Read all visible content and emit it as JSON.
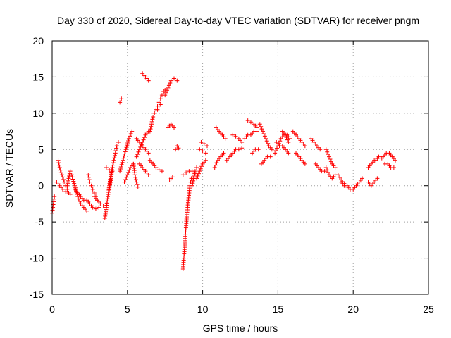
{
  "chart_data": {
    "type": "scatter",
    "title": "Day 330 of 2020, Sidereal Day-to-day VTEC variation (SDTVAR) for receiver pngm",
    "xlabel": "GPS time / hours",
    "ylabel": "SDTVAR / TECUs",
    "xlim": [
      0,
      25
    ],
    "ylim": [
      -15,
      20
    ],
    "xticks": [
      0,
      5,
      10,
      15,
      20,
      25
    ],
    "yticks": [
      -15,
      -10,
      -5,
      0,
      5,
      10,
      15,
      20
    ],
    "xtick_labels": [
      "0",
      "5",
      "10",
      "15",
      "20",
      "25"
    ],
    "ytick_labels": [
      "-15",
      "-10",
      "-5",
      "0",
      "5",
      "10",
      "15",
      "20"
    ],
    "grid": true,
    "marker": "+",
    "marker_color": "#ff0000",
    "segments": [
      {
        "x": [
          0.0,
          0.05,
          0.1,
          0.15
        ],
        "y": [
          -3.8,
          -3.0,
          -2.2,
          -1.5
        ]
      },
      {
        "x": [
          0.4,
          0.5,
          0.6,
          0.7,
          0.8,
          0.9,
          1.0,
          1.1,
          1.2
        ],
        "y": [
          3.5,
          2.5,
          1.8,
          1.2,
          0.5,
          0.0,
          -0.5,
          -1.0,
          -1.2
        ]
      },
      {
        "x": [
          0.3,
          0.5,
          0.7,
          0.9,
          1.1
        ],
        "y": [
          0.5,
          0.0,
          -0.5,
          -0.8,
          -1.0
        ]
      },
      {
        "x": [
          1.0,
          1.1,
          1.2
        ],
        "y": [
          0.0,
          1.0,
          2.0
        ]
      },
      {
        "x": [
          1.3,
          1.5,
          1.7,
          1.9,
          2.1,
          2.3
        ],
        "y": [
          1.5,
          0.0,
          -1.5,
          -2.5,
          -3.0,
          -3.5
        ]
      },
      {
        "x": [
          1.5,
          1.7,
          1.9,
          2.1
        ],
        "y": [
          -0.5,
          -1.0,
          -1.5,
          -2.0
        ]
      },
      {
        "x": [
          2.4,
          2.5,
          2.6,
          2.7,
          2.8,
          2.9,
          3.0
        ],
        "y": [
          1.5,
          0.5,
          0.0,
          -0.5,
          -1.0,
          -1.5,
          -2.0
        ]
      },
      {
        "x": [
          2.3,
          2.5,
          2.7,
          2.9,
          3.1
        ],
        "y": [
          -2.0,
          -2.5,
          -3.0,
          -3.2,
          -3.0
        ]
      },
      {
        "x": [
          2.8,
          3.0,
          3.2,
          3.4
        ],
        "y": [
          -1.5,
          -2.0,
          -2.5,
          -2.8
        ]
      },
      {
        "x": [
          3.5,
          3.6,
          3.7,
          3.8,
          3.9,
          4.0
        ],
        "y": [
          -4.5,
          -3.0,
          -1.5,
          0.0,
          1.5,
          2.5
        ]
      },
      {
        "x": [
          3.8,
          3.9,
          4.0,
          4.1,
          4.2,
          4.3,
          4.4
        ],
        "y": [
          -0.5,
          1.0,
          2.5,
          3.5,
          4.5,
          5.5,
          6.0
        ]
      },
      {
        "x": [
          3.6,
          3.8,
          4.0
        ],
        "y": [
          2.5,
          2.2,
          2.0
        ]
      },
      {
        "x": [
          4.5,
          4.6
        ],
        "y": [
          11.5,
          12.0
        ]
      },
      {
        "x": [
          4.5,
          4.7,
          4.9,
          5.1,
          5.3
        ],
        "y": [
          2.0,
          3.5,
          5.0,
          6.5,
          7.5
        ]
      },
      {
        "x": [
          4.8,
          5.0,
          5.2,
          5.4
        ],
        "y": [
          0.5,
          1.5,
          2.5,
          3.0
        ]
      },
      {
        "x": [
          5.4,
          5.5,
          5.6,
          5.7
        ],
        "y": [
          3.0,
          1.5,
          0.5,
          -0.2
        ]
      },
      {
        "x": [
          5.6,
          5.8,
          6.0,
          6.2,
          6.4
        ],
        "y": [
          4.0,
          5.0,
          6.0,
          7.0,
          7.5
        ]
      },
      {
        "x": [
          5.6,
          5.8,
          6.0,
          6.2,
          6.4
        ],
        "y": [
          6.5,
          6.0,
          5.5,
          5.0,
          4.5
        ]
      },
      {
        "x": [
          5.8,
          6.0,
          6.2,
          6.4
        ],
        "y": [
          3.0,
          2.5,
          2.0,
          1.5
        ]
      },
      {
        "x": [
          6.0,
          6.1,
          6.2,
          6.3,
          6.4
        ],
        "y": [
          15.5,
          15.2,
          15.0,
          14.8,
          14.5
        ]
      },
      {
        "x": [
          6.5,
          6.7,
          6.9,
          7.1,
          7.3
        ],
        "y": [
          3.5,
          3.0,
          2.5,
          2.2,
          2.0
        ]
      },
      {
        "x": [
          6.5,
          6.6,
          6.7,
          6.8,
          6.9,
          7.0,
          7.1,
          7.2,
          7.3,
          7.4,
          7.5
        ],
        "y": [
          7.5,
          8.5,
          9.5,
          10.0,
          10.5,
          11.0,
          11.5,
          12.0,
          12.5,
          13.0,
          13.2
        ]
      },
      {
        "x": [
          7.0,
          7.1,
          7.2
        ],
        "y": [
          10.5,
          11.0,
          11.2
        ]
      },
      {
        "x": [
          7.5,
          7.7,
          7.9,
          8.1,
          8.3
        ],
        "y": [
          12.5,
          13.5,
          14.5,
          14.8,
          14.5
        ]
      },
      {
        "x": [
          7.7,
          7.9,
          8.1
        ],
        "y": [
          8.0,
          8.5,
          8.0
        ]
      },
      {
        "x": [
          7.8,
          7.9,
          8.0
        ],
        "y": [
          0.8,
          1.0,
          1.2
        ]
      },
      {
        "x": [
          8.2,
          8.3,
          8.4
        ],
        "y": [
          5.0,
          5.5,
          5.2
        ]
      },
      {
        "x": [
          8.7,
          8.75,
          8.8,
          8.85,
          8.9,
          8.95,
          9.0,
          9.05,
          9.1,
          9.15,
          9.2,
          9.25
        ],
        "y": [
          -11.5,
          -10.0,
          -8.5,
          -7.0,
          -5.5,
          -4.0,
          -3.0,
          -2.0,
          -1.0,
          0.0,
          0.5,
          1.0
        ]
      },
      {
        "x": [
          8.7,
          8.9,
          9.1,
          9.3,
          9.5
        ],
        "y": [
          1.5,
          1.8,
          2.0,
          2.0,
          1.8
        ]
      },
      {
        "x": [
          9.3,
          9.4,
          9.5,
          9.6
        ],
        "y": [
          0.0,
          1.0,
          2.0,
          2.5
        ]
      },
      {
        "x": [
          9.6,
          9.8,
          10.0,
          10.2
        ],
        "y": [
          1.0,
          2.0,
          3.0,
          3.5
        ]
      },
      {
        "x": [
          9.8,
          10.0,
          10.2
        ],
        "y": [
          5.0,
          4.8,
          4.5
        ]
      },
      {
        "x": [
          9.9,
          10.1,
          10.3
        ],
        "y": [
          6.0,
          5.8,
          5.5
        ]
      },
      {
        "x": [
          10.8,
          11.0,
          11.2,
          11.4
        ],
        "y": [
          2.5,
          3.5,
          4.0,
          4.5
        ]
      },
      {
        "x": [
          10.9,
          11.1,
          11.3,
          11.5
        ],
        "y": [
          8.0,
          7.5,
          7.0,
          6.5
        ]
      },
      {
        "x": [
          11.6,
          11.8,
          12.0,
          12.2,
          12.4,
          12.6
        ],
        "y": [
          3.5,
          4.0,
          4.5,
          5.0,
          5.0,
          5.2
        ]
      },
      {
        "x": [
          12.0,
          12.2,
          12.4,
          12.6
        ],
        "y": [
          7.0,
          6.8,
          6.5,
          6.0
        ]
      },
      {
        "x": [
          12.8,
          13.0,
          13.2,
          13.4,
          13.6
        ],
        "y": [
          6.5,
          7.0,
          7.0,
          7.5,
          7.5
        ]
      },
      {
        "x": [
          13.0,
          13.2,
          13.4,
          13.6
        ],
        "y": [
          9.0,
          8.8,
          8.5,
          8.0
        ]
      },
      {
        "x": [
          13.3,
          13.5,
          13.7
        ],
        "y": [
          4.5,
          5.0,
          5.0
        ]
      },
      {
        "x": [
          13.8,
          14.0,
          14.2,
          14.4,
          14.6
        ],
        "y": [
          8.5,
          7.5,
          6.5,
          5.5,
          5.0
        ]
      },
      {
        "x": [
          13.9,
          14.1,
          14.3,
          14.5
        ],
        "y": [
          3.0,
          3.5,
          4.0,
          4.0
        ]
      },
      {
        "x": [
          14.8,
          15.0,
          15.2,
          15.4,
          15.6,
          15.8
        ],
        "y": [
          4.5,
          5.5,
          6.5,
          7.0,
          7.0,
          6.5
        ]
      },
      {
        "x": [
          14.9,
          15.1,
          15.3,
          15.5,
          15.7
        ],
        "y": [
          6.0,
          5.5,
          5.5,
          5.0,
          4.5
        ]
      },
      {
        "x": [
          15.3,
          15.5,
          15.7
        ],
        "y": [
          7.5,
          7.0,
          6.0
        ]
      },
      {
        "x": [
          16.0,
          16.2,
          16.4,
          16.6,
          16.8
        ],
        "y": [
          7.5,
          7.0,
          6.5,
          6.0,
          5.5
        ]
      },
      {
        "x": [
          16.2,
          16.4,
          16.6,
          16.8
        ],
        "y": [
          4.5,
          4.0,
          3.5,
          3.0
        ]
      },
      {
        "x": [
          17.2,
          17.4,
          17.6,
          17.8
        ],
        "y": [
          6.5,
          6.0,
          5.5,
          5.0
        ]
      },
      {
        "x": [
          17.5,
          17.7,
          17.9,
          18.1
        ],
        "y": [
          3.0,
          2.5,
          2.0,
          2.0
        ]
      },
      {
        "x": [
          18.2,
          18.4,
          18.6,
          18.8
        ],
        "y": [
          5.0,
          4.0,
          3.0,
          2.5
        ]
      },
      {
        "x": [
          18.2,
          18.4,
          18.6,
          18.8
        ],
        "y": [
          2.5,
          1.5,
          1.0,
          1.5
        ]
      },
      {
        "x": [
          19.0,
          19.2,
          19.4,
          19.6,
          19.8
        ],
        "y": [
          1.5,
          0.8,
          0.3,
          0.0,
          -0.5
        ]
      },
      {
        "x": [
          19.2,
          19.4,
          19.6
        ],
        "y": [
          0.5,
          0.0,
          -0.2
        ]
      },
      {
        "x": [
          20.0,
          20.2,
          20.4,
          20.6
        ],
        "y": [
          -0.5,
          0.0,
          0.5,
          1.0
        ]
      },
      {
        "x": [
          21.0,
          21.2,
          21.4
        ],
        "y": [
          2.5,
          3.0,
          3.5
        ]
      },
      {
        "x": [
          21.0,
          21.2,
          21.4,
          21.6
        ],
        "y": [
          0.5,
          0.0,
          0.5,
          1.0
        ]
      },
      {
        "x": [
          21.5,
          21.7,
          21.9
        ],
        "y": [
          3.5,
          4.0,
          3.8
        ]
      },
      {
        "x": [
          22.0,
          22.2,
          22.4,
          22.6,
          22.8
        ],
        "y": [
          4.0,
          4.5,
          4.5,
          4.0,
          3.5
        ]
      },
      {
        "x": [
          22.1,
          22.3,
          22.5,
          22.7
        ],
        "y": [
          3.0,
          3.0,
          2.5,
          2.5
        ]
      }
    ]
  }
}
